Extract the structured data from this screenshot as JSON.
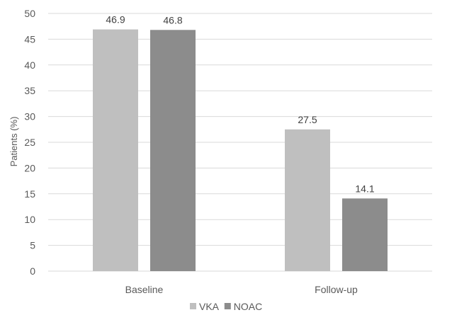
{
  "chart_data": {
    "type": "bar",
    "categories": [
      "Baseline",
      "Follow-up"
    ],
    "series": [
      {
        "name": "VKA",
        "values": [
          46.9,
          27.5
        ],
        "color": "#bfbfbf"
      },
      {
        "name": "NOAC",
        "values": [
          46.8,
          14.1
        ],
        "color": "#8c8c8c"
      }
    ],
    "ylabel": "Patients (%)",
    "xlabel": "",
    "ylim": [
      0,
      50
    ],
    "yticks": [
      0,
      5,
      10,
      15,
      20,
      25,
      30,
      35,
      40,
      45,
      50
    ],
    "grid": true,
    "legend": "bottom-center"
  }
}
